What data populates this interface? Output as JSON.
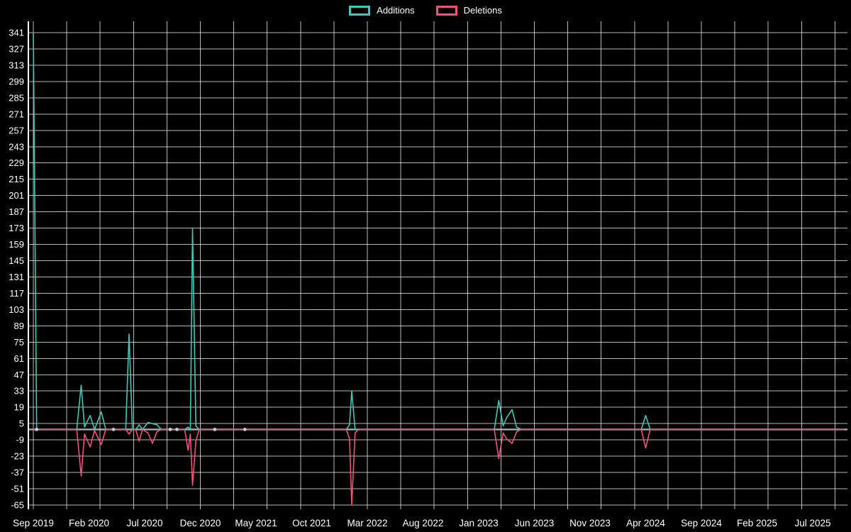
{
  "legend": {
    "items": [
      {
        "label": "Additions",
        "color": "#42c6b8"
      },
      {
        "label": "Deletions",
        "color": "#f0527a"
      }
    ]
  },
  "chart_data": {
    "type": "line",
    "title": "",
    "x_axis": {
      "labels": [
        "Sep 2019",
        "Feb 2020",
        "Jul 2020",
        "Dec 2020",
        "May 2021",
        "Oct 2021",
        "Mar 2022",
        "Aug 2022",
        "Jan 2023",
        "Jun 2023",
        "Nov 2023",
        "Apr 2024",
        "Sep 2024",
        "Feb 2025",
        "Jul 2025"
      ],
      "label_month_offsets": [
        0,
        5,
        10,
        15,
        20,
        25,
        30,
        35,
        40,
        45,
        50,
        55,
        60,
        65,
        70
      ],
      "gridline_step_months": 3,
      "total_months": 73
    },
    "y_axis": {
      "tick_max": 341,
      "tick_min": -65,
      "tick_step": 14
    },
    "series": [
      {
        "name": "Additions",
        "color": "#42c6b8",
        "points": [
          [
            0,
            341
          ],
          [
            0.3,
            0
          ],
          [
            3.9,
            0
          ],
          [
            4.3,
            38
          ],
          [
            4.6,
            2
          ],
          [
            5.1,
            12
          ],
          [
            5.5,
            0
          ],
          [
            6.1,
            15
          ],
          [
            6.5,
            0
          ],
          [
            8.3,
            0
          ],
          [
            8.6,
            82
          ],
          [
            8.9,
            0
          ],
          [
            9.2,
            0
          ],
          [
            9.5,
            4
          ],
          [
            9.8,
            0
          ],
          [
            10.3,
            6
          ],
          [
            10.7,
            5
          ],
          [
            11.1,
            4
          ],
          [
            11.5,
            0
          ],
          [
            13.6,
            0
          ],
          [
            13.9,
            2
          ],
          [
            14.1,
            0
          ],
          [
            14.3,
            173
          ],
          [
            14.6,
            3
          ],
          [
            14.9,
            0
          ],
          [
            28.1,
            0
          ],
          [
            28.4,
            4
          ],
          [
            28.6,
            33
          ],
          [
            28.9,
            0
          ],
          [
            41.4,
            0
          ],
          [
            41.8,
            25
          ],
          [
            42.2,
            3
          ],
          [
            42.5,
            10
          ],
          [
            43.0,
            17
          ],
          [
            43.4,
            2
          ],
          [
            43.8,
            0
          ],
          [
            54.6,
            0
          ],
          [
            55,
            12
          ],
          [
            55.4,
            0
          ],
          [
            72.8,
            0
          ]
        ]
      },
      {
        "name": "Deletions",
        "color": "#f0527a",
        "points": [
          [
            0,
            0
          ],
          [
            3.9,
            0
          ],
          [
            4.3,
            -40
          ],
          [
            4.6,
            -4
          ],
          [
            5.1,
            -15
          ],
          [
            5.5,
            -1
          ],
          [
            6.1,
            -13
          ],
          [
            6.5,
            0
          ],
          [
            8.3,
            0
          ],
          [
            8.6,
            -4
          ],
          [
            8.9,
            0
          ],
          [
            9.2,
            0
          ],
          [
            9.5,
            -10
          ],
          [
            9.8,
            0
          ],
          [
            10.3,
            -3
          ],
          [
            10.7,
            -12
          ],
          [
            11.1,
            -2
          ],
          [
            11.5,
            0
          ],
          [
            13.6,
            0
          ],
          [
            13.9,
            -18
          ],
          [
            14.1,
            -4
          ],
          [
            14.3,
            -48
          ],
          [
            14.6,
            -10
          ],
          [
            14.9,
            0
          ],
          [
            28.1,
            0
          ],
          [
            28.4,
            -8
          ],
          [
            28.6,
            -65
          ],
          [
            28.9,
            -3
          ],
          [
            29.2,
            0
          ],
          [
            41.4,
            0
          ],
          [
            41.8,
            -25
          ],
          [
            42.2,
            -3
          ],
          [
            42.5,
            -8
          ],
          [
            43.0,
            -12
          ],
          [
            43.4,
            -2
          ],
          [
            43.8,
            0
          ],
          [
            54.6,
            0
          ],
          [
            55,
            -16
          ],
          [
            55.4,
            0
          ],
          [
            72.8,
            0
          ]
        ]
      }
    ],
    "zero_marker_months": [
      0.3,
      7.2,
      12.3,
      12.9,
      16.3,
      19.0
    ],
    "colors": {
      "background": "#000000",
      "grid": "rgba(255,255,255,0.72)",
      "text": "#ffffff",
      "zero_line": "#c9c9d9",
      "axis": "#ffffff"
    }
  }
}
